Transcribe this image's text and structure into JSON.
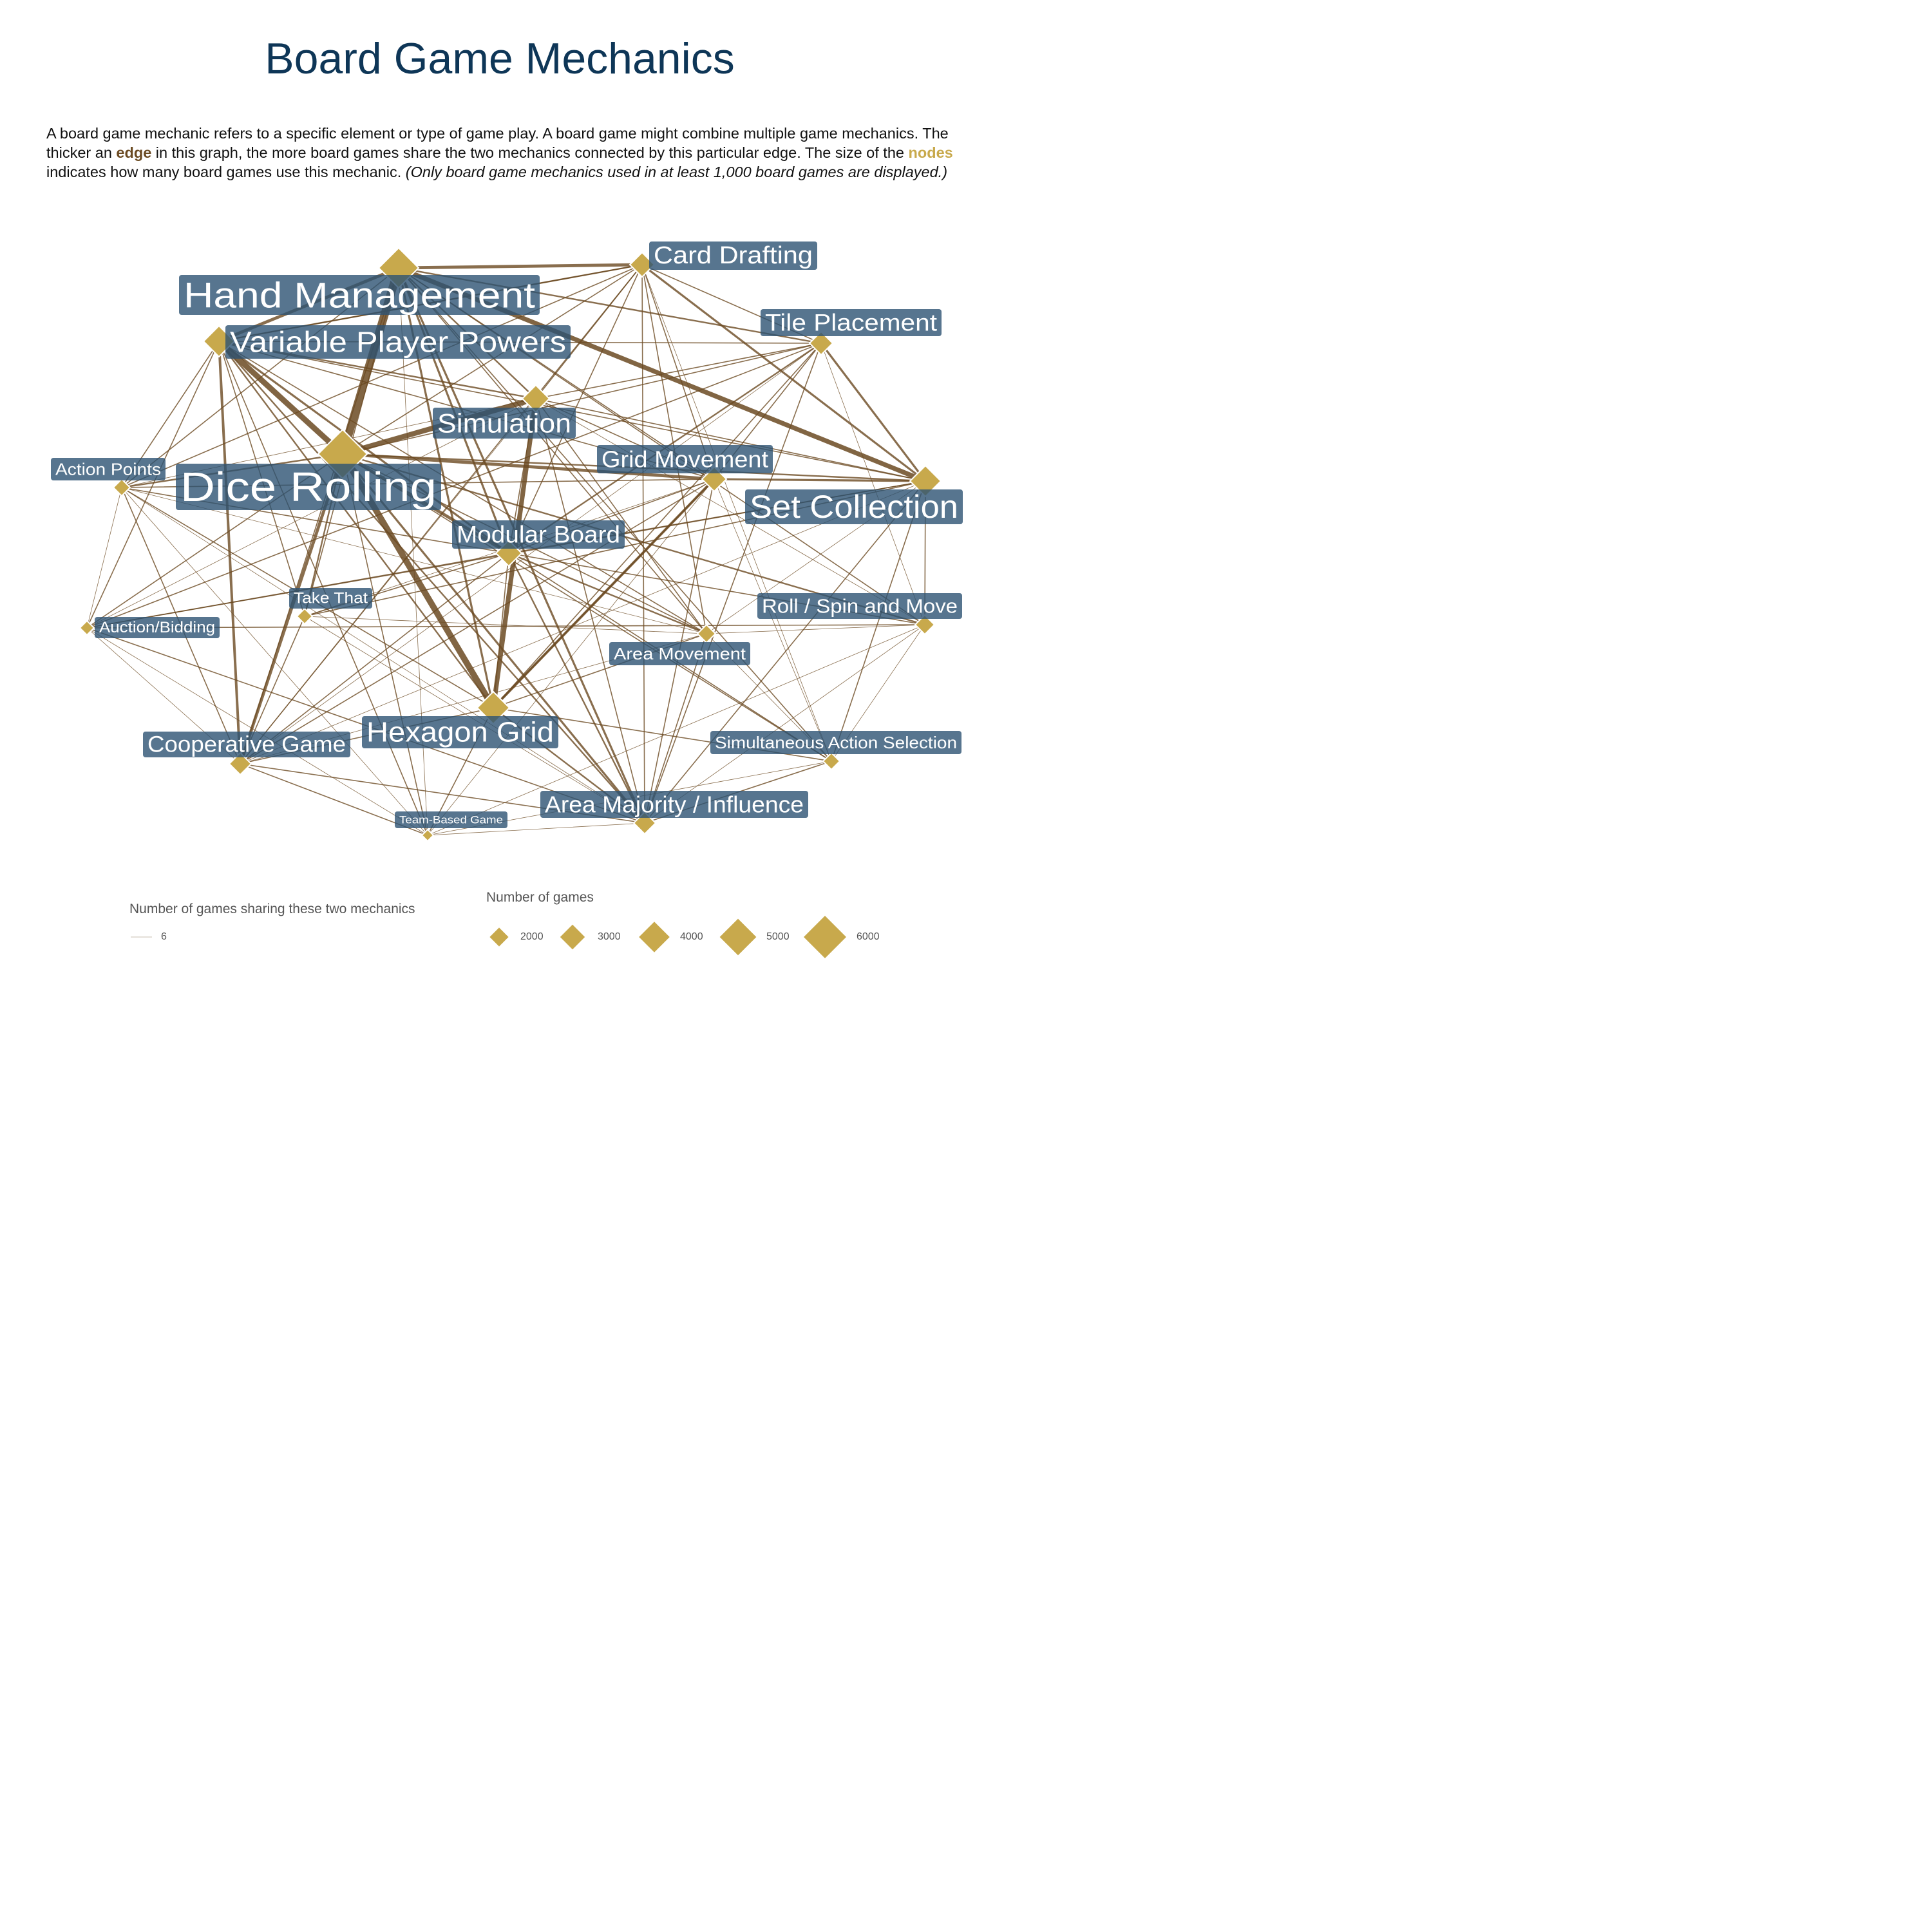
{
  "title": "Board Game Mechanics",
  "description": {
    "part1": "A board game mechanic refers to a specific element or type of game play. A board game might combine multiple game mechanics. The thicker an ",
    "edge_word": "edge",
    "part2": " in this graph, the more board games share the two mechanics connected by this particular edge. The size of the ",
    "nodes_word": "nodes",
    "part3": " indicates how many board games use this mechanic. ",
    "note": "(Only board game mechanics used in at least 1,000 board games are displayed.)"
  },
  "colors": {
    "node": "#c8a94c",
    "edge": "#6b4a22",
    "label_bg": "#2d5373",
    "title": "#0e3657"
  },
  "nodes": [
    {
      "id": "hm",
      "label": "Hand Management"
    },
    {
      "id": "cd",
      "label": "Card Drafting"
    },
    {
      "id": "tp",
      "label": "Tile Placement"
    },
    {
      "id": "vpp",
      "label": "Variable Player Powers"
    },
    {
      "id": "sim",
      "label": "Simulation"
    },
    {
      "id": "dr",
      "label": "Dice Rolling"
    },
    {
      "id": "ap",
      "label": "Action Points"
    },
    {
      "id": "gm",
      "label": "Grid Movement"
    },
    {
      "id": "sc",
      "label": "Set Collection"
    },
    {
      "id": "mb",
      "label": "Modular Board"
    },
    {
      "id": "tt",
      "label": "Take That"
    },
    {
      "id": "ab",
      "label": "Auction/Bidding"
    },
    {
      "id": "rsm",
      "label": "Roll / Spin and Move"
    },
    {
      "id": "am",
      "label": "Area Movement"
    },
    {
      "id": "hg",
      "label": "Hexagon Grid"
    },
    {
      "id": "cg",
      "label": "Cooperative Game"
    },
    {
      "id": "sas",
      "label": "Simultaneous Action Selection"
    },
    {
      "id": "ami",
      "label": "Area Majority / Influence"
    },
    {
      "id": "tbg",
      "label": "Team-Based Game"
    }
  ],
  "legend": {
    "edge_title": "Number of games sharing these two mechanics",
    "edge_items": [
      {
        "label": "6"
      }
    ],
    "node_title": "Number of games",
    "node_items": [
      {
        "label": "2000",
        "value": 2000
      },
      {
        "label": "3000",
        "value": 3000
      },
      {
        "label": "4000",
        "value": 4000
      },
      {
        "label": "5000",
        "value": 5000
      },
      {
        "label": "6000",
        "value": 6000
      }
    ]
  }
}
